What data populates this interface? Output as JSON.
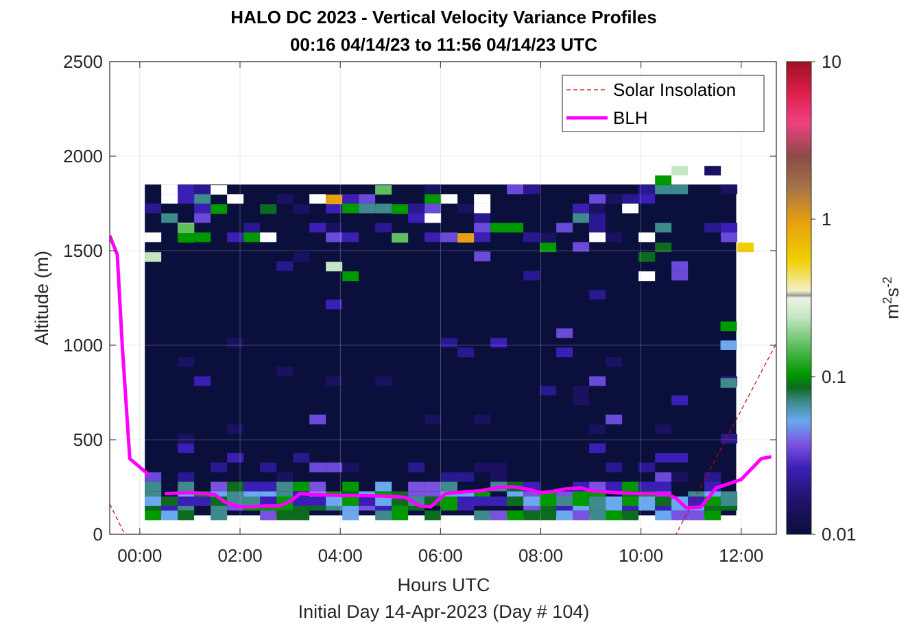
{
  "chart_data": {
    "type": "heatmap",
    "title": "HALO DC 2023 - Vertical Velocity Variance Profiles",
    "subtitle": "00:16 04/14/23 to 11:56 04/14/23  UTC",
    "xlabel": "Hours UTC",
    "xlabel2": "Initial Day 14-Apr-2023 (Day # 104)",
    "ylabel": "Altitude (m)",
    "xlim": [
      -0.6,
      12.7
    ],
    "ylim": [
      0,
      2500
    ],
    "x_ticks": [
      0,
      2,
      4,
      6,
      8,
      10,
      12
    ],
    "x_tick_labels": [
      "00:00",
      "02:00",
      "04:00",
      "06:00",
      "08:00",
      "10:00",
      "12:00"
    ],
    "y_ticks": [
      0,
      500,
      1000,
      1500,
      2000,
      2500
    ],
    "y_tick_labels": [
      "0",
      "500",
      "1000",
      "1500",
      "2000",
      "2500"
    ],
    "grid": true,
    "legend_position": "top-right",
    "colorbar": {
      "scale": "log",
      "range": [
        0.01,
        10
      ],
      "ticks": [
        0.01,
        0.1,
        1,
        10
      ],
      "tick_labels": [
        "0.01",
        "0.1",
        "1",
        "10"
      ],
      "label": "m²s⁻²",
      "label_base": "m",
      "label_exp1": "2",
      "label_mid": "s",
      "label_exp2": "-2"
    },
    "series": [
      {
        "name": "Solar Insolation",
        "style": "dashed",
        "color": "#cc0000",
        "x": [
          -0.6,
          -0.3,
          10.7,
          12.7
        ],
        "y": [
          160,
          0,
          0,
          1010
        ]
      },
      {
        "name": "BLH",
        "style": "solid",
        "color": "#ff00ff",
        "segments": [
          {
            "x": [
              -0.6,
              -0.45,
              -0.35,
              -0.2,
              0.2
            ],
            "y": [
              1580,
              1480,
              1000,
              400,
              310
            ]
          },
          {
            "x": [
              0.5,
              1.0,
              1.3,
              1.5,
              1.6,
              1.7,
              2.0,
              2.2,
              2.5,
              2.8,
              3.0,
              3.2,
              3.5,
              4.0,
              4.5,
              5.0,
              5.3,
              5.6,
              5.8,
              6.1,
              6.5,
              6.8,
              7.0,
              7.2,
              7.5,
              7.8,
              8.0,
              8.2,
              8.5,
              8.8,
              9.0,
              9.5,
              10.0,
              10.5,
              10.7,
              10.9,
              11.0,
              11.2,
              11.5,
              12.0,
              12.4,
              12.6
            ],
            "y": [
              215,
              220,
              215,
              210,
              190,
              170,
              145,
              145,
              150,
              150,
              175,
              215,
              210,
              205,
              205,
              200,
              195,
              150,
              145,
              215,
              225,
              230,
              240,
              250,
              250,
              235,
              220,
              225,
              240,
              245,
              230,
              220,
              215,
              215,
              190,
              140,
              140,
              145,
              245,
              290,
              400,
              410
            ]
          }
        ]
      }
    ],
    "heatmap": {
      "x_range": [
        0.1,
        11.9
      ],
      "y_range": [
        100,
        1850
      ],
      "note_background": "~0.01 m²s⁻² (dark navy) over most of the domain",
      "highlighted_cells": [
        {
          "x": 11.75,
          "y": 800,
          "v": 0.06
        },
        {
          "x": 11.75,
          "y": 1000,
          "v": 0.045
        },
        {
          "x": 11.75,
          "y": 1100,
          "v": 0.08
        }
      ]
    }
  }
}
